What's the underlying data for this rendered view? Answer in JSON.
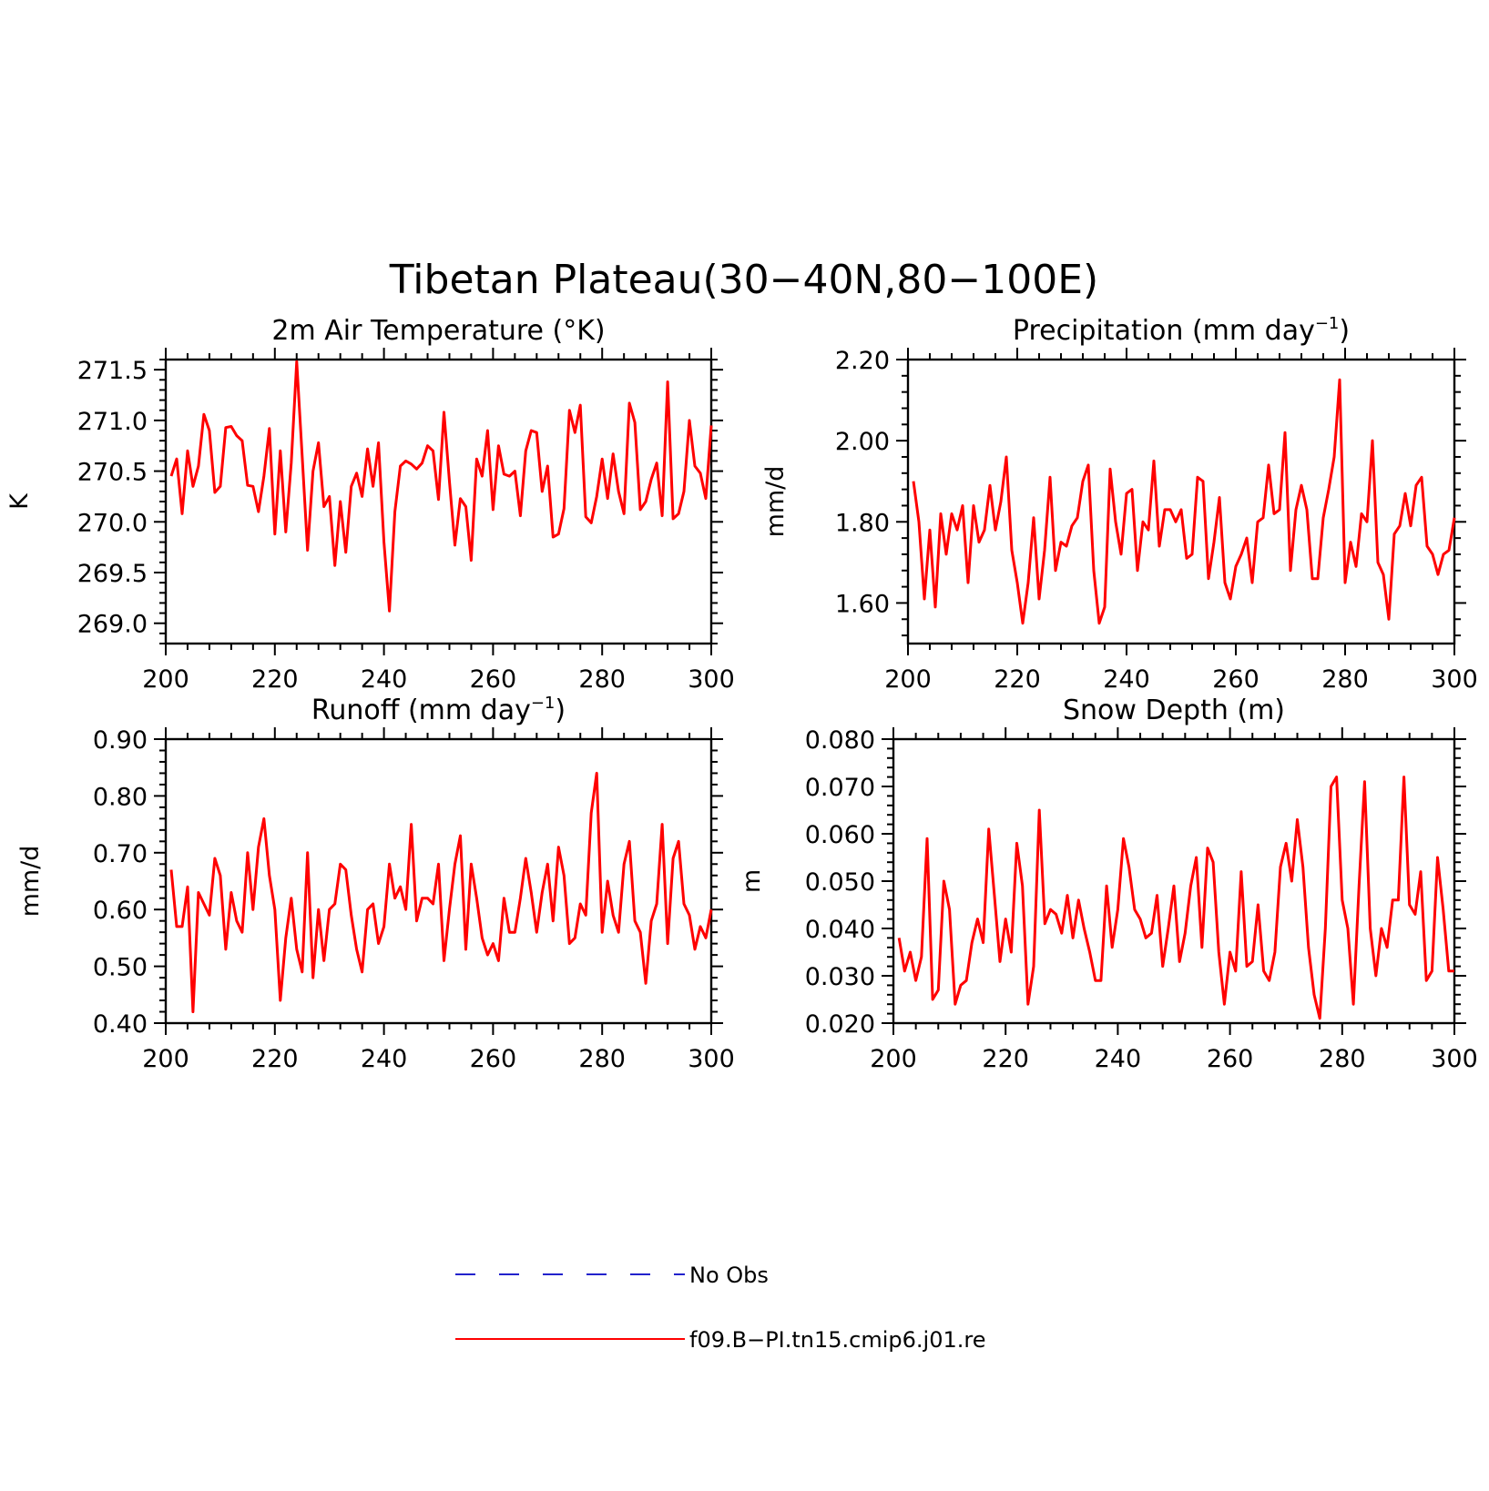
{
  "figure": {
    "title": "Tibetan Plateau(30−40N,80−100E)"
  },
  "legend": [
    {
      "label": "No Obs",
      "color": "#2222cc",
      "style": "dashed"
    },
    {
      "label": "f09.B−PI.tn15.cmip6.j01.re",
      "color": "#ff0000",
      "style": "solid"
    }
  ],
  "chart_data": [
    {
      "type": "line",
      "title_html": "2m Air Temperature (°K)",
      "ylabel": "K",
      "xlim": [
        200,
        300
      ],
      "ylim": [
        268.8,
        271.6
      ],
      "xticks": [
        200,
        220,
        240,
        260,
        280,
        300
      ],
      "yticks": [
        "269.0",
        "269.5",
        "270.0",
        "270.5",
        "271.0",
        "271.5"
      ],
      "series": [
        {
          "color": "#ff0000",
          "x": [
            201,
            202,
            203,
            204,
            205,
            206,
            207,
            208,
            209,
            210,
            211,
            212,
            213,
            214,
            215,
            216,
            217,
            218,
            219,
            220,
            221,
            222,
            223,
            224,
            225,
            226,
            227,
            228,
            229,
            230,
            231,
            232,
            233,
            234,
            235,
            236,
            237,
            238,
            239,
            240,
            241,
            242,
            243,
            244,
            245,
            246,
            247,
            248,
            249,
            250,
            251,
            252,
            253,
            254,
            255,
            256,
            257,
            258,
            259,
            260,
            261,
            262,
            263,
            264,
            265,
            266,
            267,
            268,
            269,
            270,
            271,
            272,
            273,
            274,
            275,
            276,
            277,
            278,
            279,
            280,
            281,
            282,
            283,
            284,
            285,
            286,
            287,
            288,
            289,
            290,
            291,
            292,
            293,
            294,
            295,
            296,
            297,
            298,
            299,
            300
          ],
          "y": [
            270.45,
            270.62,
            270.08,
            270.7,
            270.35,
            270.55,
            271.06,
            270.9,
            270.29,
            270.35,
            270.93,
            270.94,
            270.85,
            270.8,
            270.36,
            270.35,
            270.1,
            270.45,
            270.92,
            269.88,
            270.7,
            269.9,
            270.58,
            271.58,
            270.65,
            269.72,
            270.5,
            270.78,
            270.15,
            270.25,
            269.57,
            270.2,
            269.7,
            270.35,
            270.48,
            270.25,
            270.72,
            270.35,
            270.78,
            269.8,
            269.12,
            270.1,
            270.55,
            270.6,
            270.57,
            270.52,
            270.58,
            270.75,
            270.7,
            270.22,
            271.08,
            270.4,
            269.77,
            270.23,
            270.15,
            269.62,
            270.62,
            270.45,
            270.9,
            270.12,
            270.75,
            270.47,
            270.45,
            270.5,
            270.06,
            270.7,
            270.9,
            270.88,
            270.3,
            270.55,
            269.85,
            269.88,
            270.13,
            271.1,
            270.88,
            271.15,
            270.05,
            269.99,
            270.25,
            270.62,
            270.23,
            270.67,
            270.3,
            270.08,
            271.17,
            270.98,
            270.12,
            270.2,
            270.42,
            270.58,
            270.06,
            271.38,
            270.03,
            270.08,
            270.3,
            271.0,
            270.55,
            270.48,
            270.23,
            270.95
          ]
        }
      ]
    },
    {
      "type": "line",
      "title_html": "Precipitation (mm day<tspan dy=\"-12\" font-size=\"18\">−1</tspan><tspan dy=\"12\">)</tspan>",
      "ylabel": "mm/d",
      "xlim": [
        200,
        300
      ],
      "ylim": [
        1.5,
        2.2
      ],
      "xticks": [
        200,
        220,
        240,
        260,
        280,
        300
      ],
      "yticks": [
        "1.60",
        "1.80",
        "2.00",
        "2.20"
      ],
      "series": [
        {
          "color": "#ff0000",
          "x": [
            201,
            202,
            203,
            204,
            205,
            206,
            207,
            208,
            209,
            210,
            211,
            212,
            213,
            214,
            215,
            216,
            217,
            218,
            219,
            220,
            221,
            222,
            223,
            224,
            225,
            226,
            227,
            228,
            229,
            230,
            231,
            232,
            233,
            234,
            235,
            236,
            237,
            238,
            239,
            240,
            241,
            242,
            243,
            244,
            245,
            246,
            247,
            248,
            249,
            250,
            251,
            252,
            253,
            254,
            255,
            256,
            257,
            258,
            259,
            260,
            261,
            262,
            263,
            264,
            265,
            266,
            267,
            268,
            269,
            270,
            271,
            272,
            273,
            274,
            275,
            276,
            277,
            278,
            279,
            280,
            281,
            282,
            283,
            284,
            285,
            286,
            287,
            288,
            289,
            290,
            291,
            292,
            293,
            294,
            295,
            296,
            297,
            298,
            299,
            300
          ],
          "y": [
            1.9,
            1.8,
            1.61,
            1.78,
            1.59,
            1.82,
            1.72,
            1.82,
            1.78,
            1.84,
            1.65,
            1.84,
            1.75,
            1.78,
            1.89,
            1.78,
            1.85,
            1.96,
            1.73,
            1.65,
            1.55,
            1.65,
            1.81,
            1.61,
            1.73,
            1.91,
            1.68,
            1.75,
            1.74,
            1.79,
            1.81,
            1.9,
            1.94,
            1.68,
            1.55,
            1.59,
            1.93,
            1.8,
            1.72,
            1.87,
            1.88,
            1.68,
            1.8,
            1.78,
            1.95,
            1.74,
            1.83,
            1.83,
            1.8,
            1.83,
            1.71,
            1.72,
            1.91,
            1.9,
            1.66,
            1.75,
            1.86,
            1.65,
            1.61,
            1.69,
            1.72,
            1.76,
            1.65,
            1.8,
            1.81,
            1.94,
            1.82,
            1.83,
            2.02,
            1.68,
            1.83,
            1.89,
            1.83,
            1.66,
            1.66,
            1.81,
            1.88,
            1.96,
            2.15,
            1.65,
            1.75,
            1.69,
            1.82,
            1.8,
            2.0,
            1.7,
            1.67,
            1.56,
            1.77,
            1.79,
            1.87,
            1.79,
            1.89,
            1.91,
            1.74,
            1.72,
            1.67,
            1.72,
            1.73,
            1.81
          ]
        }
      ]
    },
    {
      "type": "line",
      "title_html": "Runoff (mm day<tspan dy=\"-12\" font-size=\"18\">−1</tspan><tspan dy=\"12\">)</tspan>",
      "ylabel": "mm/d",
      "xlim": [
        200,
        300
      ],
      "ylim": [
        0.4,
        0.9
      ],
      "xticks": [
        200,
        220,
        240,
        260,
        280,
        300
      ],
      "yticks": [
        "0.40",
        "0.50",
        "0.60",
        "0.70",
        "0.80",
        "0.90"
      ],
      "series": [
        {
          "color": "#ff0000",
          "x": [
            201,
            202,
            203,
            204,
            205,
            206,
            207,
            208,
            209,
            210,
            211,
            212,
            213,
            214,
            215,
            216,
            217,
            218,
            219,
            220,
            221,
            222,
            223,
            224,
            225,
            226,
            227,
            228,
            229,
            230,
            231,
            232,
            233,
            234,
            235,
            236,
            237,
            238,
            239,
            240,
            241,
            242,
            243,
            244,
            245,
            246,
            247,
            248,
            249,
            250,
            251,
            252,
            253,
            254,
            255,
            256,
            257,
            258,
            259,
            260,
            261,
            262,
            263,
            264,
            265,
            266,
            267,
            268,
            269,
            270,
            271,
            272,
            273,
            274,
            275,
            276,
            277,
            278,
            279,
            280,
            281,
            282,
            283,
            284,
            285,
            286,
            287,
            288,
            289,
            290,
            291,
            292,
            293,
            294,
            295,
            296,
            297,
            298,
            299,
            300
          ],
          "y": [
            0.67,
            0.57,
            0.57,
            0.64,
            0.42,
            0.63,
            0.61,
            0.59,
            0.69,
            0.66,
            0.53,
            0.63,
            0.58,
            0.56,
            0.7,
            0.6,
            0.71,
            0.76,
            0.66,
            0.6,
            0.44,
            0.55,
            0.62,
            0.53,
            0.49,
            0.7,
            0.48,
            0.6,
            0.51,
            0.6,
            0.61,
            0.68,
            0.67,
            0.59,
            0.53,
            0.49,
            0.6,
            0.61,
            0.54,
            0.57,
            0.68,
            0.62,
            0.64,
            0.6,
            0.75,
            0.58,
            0.62,
            0.62,
            0.61,
            0.68,
            0.51,
            0.6,
            0.68,
            0.73,
            0.53,
            0.68,
            0.62,
            0.55,
            0.52,
            0.54,
            0.51,
            0.62,
            0.56,
            0.56,
            0.62,
            0.69,
            0.63,
            0.56,
            0.63,
            0.68,
            0.58,
            0.71,
            0.66,
            0.54,
            0.55,
            0.61,
            0.59,
            0.77,
            0.84,
            0.56,
            0.65,
            0.59,
            0.56,
            0.68,
            0.72,
            0.58,
            0.56,
            0.47,
            0.58,
            0.61,
            0.75,
            0.54,
            0.69,
            0.72,
            0.61,
            0.59,
            0.53,
            0.57,
            0.55,
            0.6
          ]
        }
      ]
    },
    {
      "type": "line",
      "title_html": "Snow Depth (m)",
      "ylabel": "m",
      "xlim": [
        200,
        300
      ],
      "ylim": [
        0.02,
        0.08
      ],
      "xticks": [
        200,
        220,
        240,
        260,
        280,
        300
      ],
      "yticks": [
        "0.020",
        "0.030",
        "0.040",
        "0.050",
        "0.060",
        "0.070",
        "0.080"
      ],
      "series": [
        {
          "color": "#ff0000",
          "x": [
            201,
            202,
            203,
            204,
            205,
            206,
            207,
            208,
            209,
            210,
            211,
            212,
            213,
            214,
            215,
            216,
            217,
            218,
            219,
            220,
            221,
            222,
            223,
            224,
            225,
            226,
            227,
            228,
            229,
            230,
            231,
            232,
            233,
            234,
            235,
            236,
            237,
            238,
            239,
            240,
            241,
            242,
            243,
            244,
            245,
            246,
            247,
            248,
            249,
            250,
            251,
            252,
            253,
            254,
            255,
            256,
            257,
            258,
            259,
            260,
            261,
            262,
            263,
            264,
            265,
            266,
            267,
            268,
            269,
            270,
            271,
            272,
            273,
            274,
            275,
            276,
            277,
            278,
            279,
            280,
            281,
            282,
            283,
            284,
            285,
            286,
            287,
            288,
            289,
            290,
            291,
            292,
            293,
            294,
            295,
            296,
            297,
            298,
            299,
            300
          ],
          "y": [
            0.038,
            0.031,
            0.035,
            0.029,
            0.034,
            0.059,
            0.025,
            0.027,
            0.05,
            0.044,
            0.024,
            0.028,
            0.029,
            0.037,
            0.042,
            0.037,
            0.061,
            0.047,
            0.033,
            0.042,
            0.035,
            0.058,
            0.049,
            0.024,
            0.032,
            0.065,
            0.041,
            0.044,
            0.043,
            0.039,
            0.047,
            0.038,
            0.046,
            0.04,
            0.035,
            0.029,
            0.029,
            0.049,
            0.036,
            0.044,
            0.059,
            0.053,
            0.044,
            0.042,
            0.038,
            0.039,
            0.047,
            0.032,
            0.04,
            0.049,
            0.033,
            0.039,
            0.049,
            0.055,
            0.036,
            0.057,
            0.054,
            0.035,
            0.024,
            0.035,
            0.031,
            0.052,
            0.032,
            0.033,
            0.045,
            0.031,
            0.029,
            0.035,
            0.053,
            0.058,
            0.05,
            0.063,
            0.053,
            0.036,
            0.026,
            0.021,
            0.04,
            0.07,
            0.072,
            0.046,
            0.04,
            0.024,
            0.049,
            0.071,
            0.04,
            0.03,
            0.04,
            0.036,
            0.046,
            0.046,
            0.072,
            0.045,
            0.043,
            0.052,
            0.029,
            0.031,
            0.055,
            0.044,
            0.031,
            0.031
          ]
        }
      ]
    }
  ]
}
